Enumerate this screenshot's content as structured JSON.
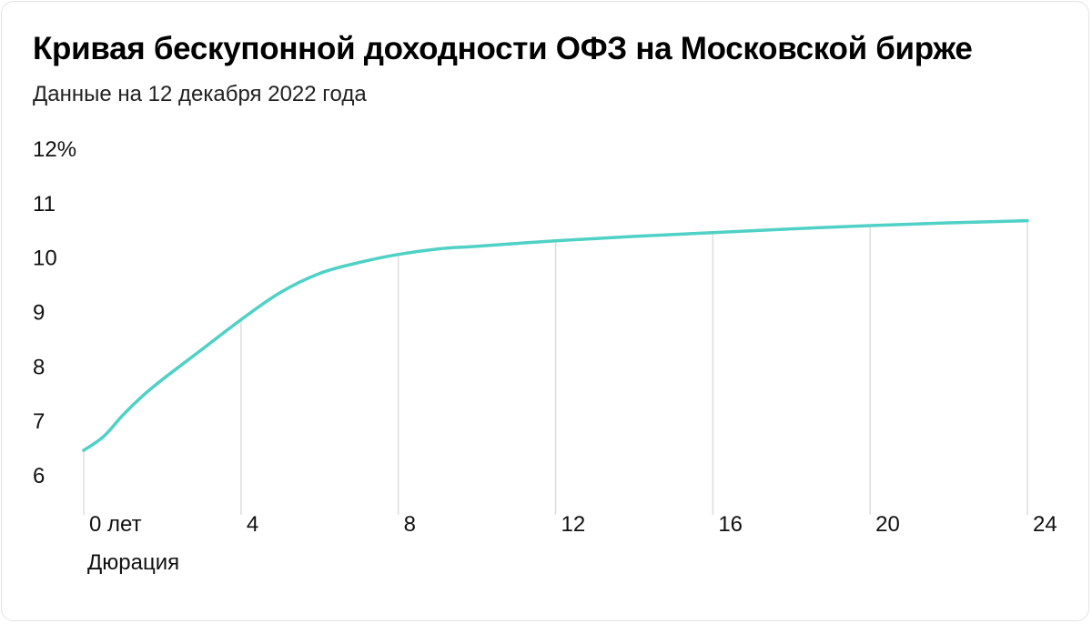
{
  "header": {
    "title": "Кривая бескупонной доходности ОФЗ на Московской бирже",
    "subtitle": "Данные на 12 декабря 2022 года"
  },
  "chart_data": {
    "type": "line",
    "title": "Кривая бескупонной доходности ОФЗ на Московской бирже",
    "subtitle": "Данные на 12 декабря 2022 года",
    "xlabel": "Дюрация",
    "ylabel": "",
    "xlim": [
      0,
      24
    ],
    "ylim": [
      6,
      12
    ],
    "x_ticks": [
      0,
      4,
      8,
      12,
      16,
      20,
      24
    ],
    "x_tick_labels": [
      "0 лет",
      "4",
      "8",
      "12",
      "16",
      "20",
      "24"
    ],
    "y_ticks": [
      6,
      7,
      8,
      9,
      10,
      11,
      12
    ],
    "y_tick_labels": [
      "6",
      "7",
      "8",
      "9",
      "10",
      "11",
      "12%"
    ],
    "grid": "vertical",
    "colors": {
      "line": "#4fd1c5",
      "grid": "#dedede",
      "text": "#111111"
    },
    "series": [
      {
        "x": [
          0,
          0.5,
          1,
          1.5,
          2,
          3,
          4,
          5,
          6,
          7,
          8,
          9,
          10,
          12,
          14,
          16,
          18,
          20,
          22,
          24
        ],
        "values": [
          6.45,
          6.7,
          7.1,
          7.45,
          7.75,
          8.3,
          8.85,
          9.35,
          9.7,
          9.9,
          10.05,
          10.15,
          10.2,
          10.3,
          10.38,
          10.45,
          10.52,
          10.58,
          10.63,
          10.67
        ]
      }
    ]
  }
}
